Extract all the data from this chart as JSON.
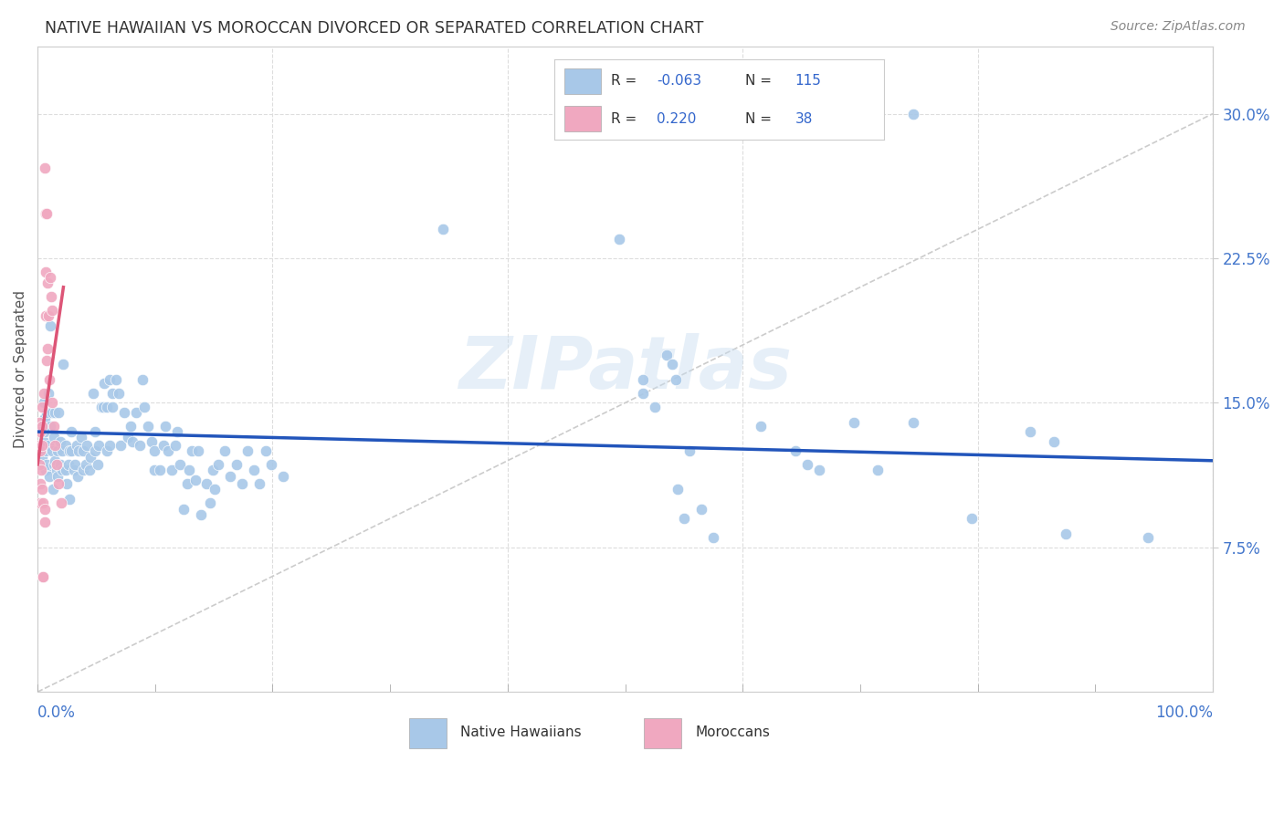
{
  "title": "NATIVE HAWAIIAN VS MOROCCAN DIVORCED OR SEPARATED CORRELATION CHART",
  "source": "Source: ZipAtlas.com",
  "ylabel": "Divorced or Separated",
  "xlim": [
    0.0,
    100.0
  ],
  "ylim": [
    0.0,
    0.335
  ],
  "background_color": "#ffffff",
  "grid_color": "#dddddd",
  "watermark": "ZIPatlas",
  "blue_color": "#a8c8e8",
  "pink_color": "#f0a8c0",
  "blue_line_color": "#2255bb",
  "pink_line_color": "#dd5577",
  "diagonal_color": "#cccccc",
  "legend_blue_patch": "#a8c8e8",
  "legend_pink_patch": "#f0a8c0",
  "legend_text_color": "#333333",
  "legend_value_color": "#3366cc",
  "R_blue": -0.063,
  "N_blue": 115,
  "R_pink": 0.22,
  "N_pink": 38,
  "blue_line_x": [
    0.0,
    100.0
  ],
  "blue_line_y_start": 0.135,
  "blue_line_y_end": 0.12,
  "pink_line_x": [
    0.0,
    2.2
  ],
  "pink_line_y_start": 0.118,
  "pink_line_y_end": 0.21,
  "blue_points": [
    [
      0.4,
      0.138
    ],
    [
      0.4,
      0.122
    ],
    [
      0.5,
      0.15
    ],
    [
      0.5,
      0.13
    ],
    [
      0.6,
      0.142
    ],
    [
      0.6,
      0.135
    ],
    [
      0.7,
      0.125
    ],
    [
      0.7,
      0.115
    ],
    [
      0.8,
      0.118
    ],
    [
      0.8,
      0.145
    ],
    [
      0.9,
      0.155
    ],
    [
      0.9,
      0.128
    ],
    [
      1.0,
      0.112
    ],
    [
      1.1,
      0.138
    ],
    [
      1.1,
      0.19
    ],
    [
      1.2,
      0.145
    ],
    [
      1.2,
      0.125
    ],
    [
      1.3,
      0.105
    ],
    [
      1.4,
      0.118
    ],
    [
      1.4,
      0.132
    ],
    [
      1.5,
      0.145
    ],
    [
      1.5,
      0.12
    ],
    [
      1.6,
      0.115
    ],
    [
      1.7,
      0.112
    ],
    [
      1.7,
      0.125
    ],
    [
      1.8,
      0.145
    ],
    [
      1.9,
      0.13
    ],
    [
      1.9,
      0.118
    ],
    [
      2.1,
      0.125
    ],
    [
      2.1,
      0.115
    ],
    [
      2.2,
      0.17
    ],
    [
      2.4,
      0.115
    ],
    [
      2.4,
      0.128
    ],
    [
      2.5,
      0.108
    ],
    [
      2.6,
      0.118
    ],
    [
      2.7,
      0.125
    ],
    [
      2.7,
      0.1
    ],
    [
      2.9,
      0.135
    ],
    [
      2.9,
      0.125
    ],
    [
      3.1,
      0.115
    ],
    [
      3.2,
      0.118
    ],
    [
      3.3,
      0.128
    ],
    [
      3.4,
      0.112
    ],
    [
      3.5,
      0.125
    ],
    [
      3.7,
      0.132
    ],
    [
      3.9,
      0.125
    ],
    [
      3.9,
      0.115
    ],
    [
      4.1,
      0.118
    ],
    [
      4.2,
      0.128
    ],
    [
      4.4,
      0.115
    ],
    [
      4.5,
      0.122
    ],
    [
      4.7,
      0.155
    ],
    [
      4.9,
      0.135
    ],
    [
      4.9,
      0.125
    ],
    [
      5.1,
      0.118
    ],
    [
      5.2,
      0.128
    ],
    [
      5.4,
      0.148
    ],
    [
      5.6,
      0.148
    ],
    [
      5.7,
      0.16
    ],
    [
      5.9,
      0.125
    ],
    [
      5.9,
      0.148
    ],
    [
      6.1,
      0.162
    ],
    [
      6.1,
      0.128
    ],
    [
      6.4,
      0.155
    ],
    [
      6.4,
      0.148
    ],
    [
      6.7,
      0.162
    ],
    [
      6.9,
      0.155
    ],
    [
      7.1,
      0.128
    ],
    [
      7.4,
      0.145
    ],
    [
      7.7,
      0.132
    ],
    [
      7.9,
      0.138
    ],
    [
      8.1,
      0.13
    ],
    [
      8.4,
      0.145
    ],
    [
      8.7,
      0.128
    ],
    [
      8.9,
      0.162
    ],
    [
      9.1,
      0.148
    ],
    [
      9.4,
      0.138
    ],
    [
      9.7,
      0.13
    ],
    [
      9.9,
      0.125
    ],
    [
      9.9,
      0.115
    ],
    [
      10.4,
      0.115
    ],
    [
      10.7,
      0.128
    ],
    [
      10.9,
      0.138
    ],
    [
      11.1,
      0.125
    ],
    [
      11.4,
      0.115
    ],
    [
      11.7,
      0.128
    ],
    [
      11.9,
      0.135
    ],
    [
      12.1,
      0.118
    ],
    [
      12.4,
      0.095
    ],
    [
      12.7,
      0.108
    ],
    [
      12.9,
      0.115
    ],
    [
      13.1,
      0.125
    ],
    [
      13.4,
      0.11
    ],
    [
      13.7,
      0.125
    ],
    [
      13.9,
      0.092
    ],
    [
      14.4,
      0.108
    ],
    [
      14.7,
      0.098
    ],
    [
      14.9,
      0.115
    ],
    [
      15.1,
      0.105
    ],
    [
      15.4,
      0.118
    ],
    [
      15.9,
      0.125
    ],
    [
      16.4,
      0.112
    ],
    [
      16.9,
      0.118
    ],
    [
      17.4,
      0.108
    ],
    [
      17.9,
      0.125
    ],
    [
      18.4,
      0.115
    ],
    [
      18.9,
      0.108
    ],
    [
      19.4,
      0.125
    ],
    [
      19.9,
      0.118
    ],
    [
      20.9,
      0.112
    ],
    [
      34.5,
      0.24
    ],
    [
      49.5,
      0.235
    ],
    [
      51.5,
      0.162
    ],
    [
      51.5,
      0.155
    ],
    [
      52.5,
      0.148
    ],
    [
      53.5,
      0.175
    ],
    [
      54.0,
      0.17
    ],
    [
      54.3,
      0.162
    ],
    [
      54.5,
      0.105
    ],
    [
      55.0,
      0.09
    ],
    [
      55.5,
      0.125
    ],
    [
      56.5,
      0.095
    ],
    [
      57.5,
      0.08
    ],
    [
      61.5,
      0.138
    ],
    [
      64.5,
      0.125
    ],
    [
      65.5,
      0.118
    ],
    [
      66.5,
      0.115
    ],
    [
      69.5,
      0.14
    ],
    [
      71.5,
      0.115
    ],
    [
      74.5,
      0.14
    ],
    [
      79.5,
      0.09
    ],
    [
      84.5,
      0.135
    ],
    [
      86.5,
      0.13
    ],
    [
      87.5,
      0.082
    ],
    [
      94.5,
      0.08
    ],
    [
      74.5,
      0.3
    ]
  ],
  "pink_points": [
    [
      0.18,
      0.14
    ],
    [
      0.18,
      0.128
    ],
    [
      0.18,
      0.118
    ],
    [
      0.22,
      0.108
    ],
    [
      0.22,
      0.098
    ],
    [
      0.22,
      0.135
    ],
    [
      0.25,
      0.125
    ],
    [
      0.3,
      0.115
    ],
    [
      0.35,
      0.128
    ],
    [
      0.35,
      0.148
    ],
    [
      0.38,
      0.138
    ],
    [
      0.4,
      0.105
    ],
    [
      0.42,
      0.098
    ],
    [
      0.45,
      0.06
    ],
    [
      0.55,
      0.155
    ],
    [
      0.58,
      0.095
    ],
    [
      0.6,
      0.088
    ],
    [
      0.65,
      0.272
    ],
    [
      0.68,
      0.248
    ],
    [
      0.7,
      0.218
    ],
    [
      0.72,
      0.195
    ],
    [
      0.75,
      0.172
    ],
    [
      0.78,
      0.248
    ],
    [
      0.85,
      0.212
    ],
    [
      0.88,
      0.178
    ],
    [
      0.95,
      0.195
    ],
    [
      0.98,
      0.162
    ],
    [
      1.1,
      0.215
    ],
    [
      1.15,
      0.205
    ],
    [
      1.2,
      0.198
    ],
    [
      1.25,
      0.15
    ],
    [
      1.4,
      0.138
    ],
    [
      1.5,
      0.128
    ],
    [
      1.6,
      0.118
    ],
    [
      1.8,
      0.108
    ],
    [
      2.0,
      0.098
    ],
    [
      0.45,
      0.06
    ]
  ]
}
